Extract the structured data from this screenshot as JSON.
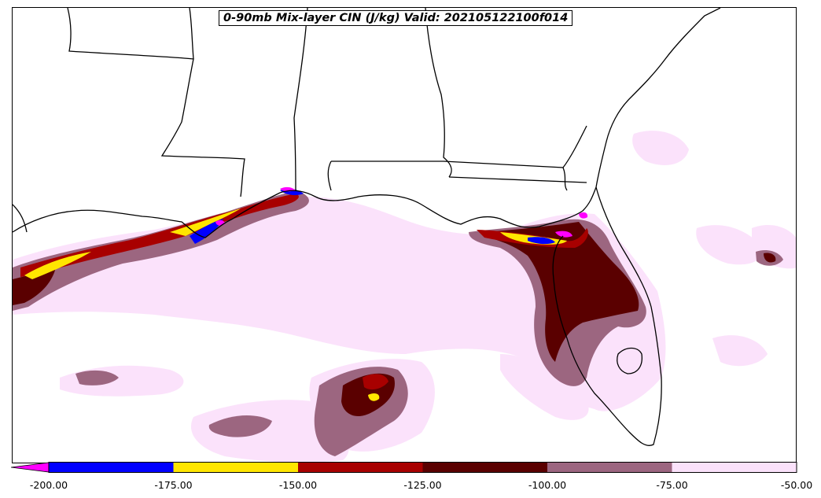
{
  "title": "0-90mb Mix-layer CIN (J/kg) Valid: 202105122100f014",
  "colorbar": {
    "min": -200,
    "max": -50,
    "extend": "min",
    "under_color": "#ff00ff",
    "bins": [
      {
        "from": -200,
        "to": -175,
        "color": "#0000ff"
      },
      {
        "from": -175,
        "to": -150,
        "color": "#ffe600"
      },
      {
        "from": -150,
        "to": -125,
        "color": "#a80000"
      },
      {
        "from": -125,
        "to": -100,
        "color": "#5a0000"
      },
      {
        "from": -100,
        "to": -75,
        "color": "#9c6680"
      },
      {
        "from": -75,
        "to": -50,
        "color": "#fbe2fb"
      }
    ],
    "tick_labels": [
      "-200.00",
      "-175.00",
      "-150.00",
      "-125.00",
      "-100.00",
      "-75.00",
      "-50.00"
    ]
  }
}
